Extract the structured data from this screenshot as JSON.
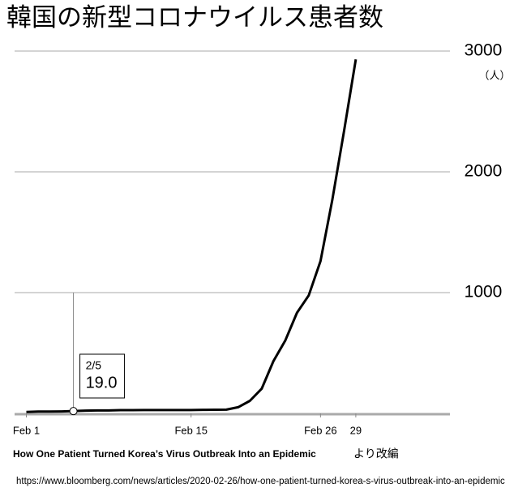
{
  "chart_data": {
    "type": "line",
    "title": "韓国の新型コロナウイルス患者数",
    "y_unit": "（人）",
    "x": [
      1,
      2,
      3,
      4,
      5,
      6,
      7,
      8,
      9,
      10,
      11,
      12,
      13,
      14,
      15,
      16,
      17,
      18,
      19,
      20,
      21,
      22,
      23,
      24,
      25,
      26,
      27,
      28,
      29
    ],
    "series": [
      {
        "name": "患者数",
        "color": "#000000",
        "values": [
          12,
          15,
          15,
          16,
          19,
          23,
          24,
          24,
          27,
          27,
          28,
          28,
          28,
          28,
          28,
          29,
          30,
          31,
          51,
          104,
          204,
          433,
          602,
          833,
          977,
          1261,
          1766,
          2337,
          2931
        ]
      }
    ],
    "xlim": [
      0,
      37
    ],
    "xticks": [
      {
        "value": 1,
        "label": "Feb 1"
      },
      {
        "value": 15,
        "label": "Feb 15"
      },
      {
        "value": 26,
        "label": "Feb 26"
      },
      {
        "value": 29,
        "label": "29"
      }
    ],
    "ylim": [
      0,
      3000
    ],
    "yticks": [
      1000,
      2000,
      3000
    ],
    "grid": true,
    "annotation": {
      "x": 5,
      "label": "2/5",
      "value_label": "19.0"
    },
    "source_title": "How One Patient Turned Korea’s Virus Outbreak Into an Epidemic",
    "source_note": "より改編",
    "source_url": "https://www.bloomberg.com/news/articles/2020-02-26/how-one-patient-turned-korea-s-virus-outbreak-into-an-epidemic"
  }
}
